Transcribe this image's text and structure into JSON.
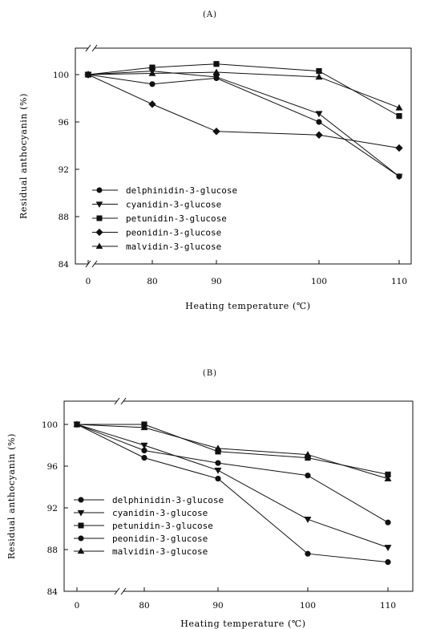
{
  "chart_data": [
    {
      "type": "line",
      "panel_label": "(A)",
      "x": [
        0,
        80,
        90,
        100,
        110
      ],
      "xlabel": "Heating temperature (℃)",
      "ylabel": "Residual anthocyanin (%)",
      "ylim": [
        84,
        102
      ],
      "yticks": [
        84,
        88,
        92,
        96,
        100
      ],
      "grid": false,
      "legend_position": "lower-left",
      "series": [
        {
          "name": "delphinidin-3-glucose",
          "marker": "circle",
          "values": [
            100,
            99.2,
            99.7,
            96.0,
            91.4
          ]
        },
        {
          "name": "cyanidin-3-glucose",
          "marker": "triangle-down",
          "values": [
            100,
            100.3,
            99.8,
            96.7,
            91.4
          ]
        },
        {
          "name": "petunidin-3-glucose",
          "marker": "square",
          "values": [
            100,
            100.6,
            100.9,
            100.3,
            96.5
          ]
        },
        {
          "name": "peonidin-3-glucose",
          "marker": "diamond",
          "values": [
            100,
            97.5,
            95.2,
            94.9,
            93.8
          ]
        },
        {
          "name": "malvidin-3-glucose",
          "marker": "triangle-up",
          "values": [
            100,
            100.1,
            100.2,
            99.8,
            97.2
          ]
        }
      ]
    },
    {
      "type": "line",
      "panel_label": "(B)",
      "x": [
        0,
        80,
        90,
        100,
        110
      ],
      "xlabel": "Heating temperature (℃)",
      "ylabel": "Residual anthocyanin (%)",
      "ylim": [
        84,
        102
      ],
      "yticks": [
        84,
        88,
        92,
        96,
        100
      ],
      "grid": false,
      "legend_position": "lower-left",
      "series": [
        {
          "name": "delphinidin-3-glucose",
          "marker": "circle",
          "values": [
            100,
            96.8,
            94.8,
            87.6,
            86.8
          ]
        },
        {
          "name": "cyanidin-3-glucose",
          "marker": "triangle-down",
          "values": [
            100,
            98.0,
            95.6,
            90.9,
            88.2
          ]
        },
        {
          "name": "petunidin-3-glucose",
          "marker": "square",
          "values": [
            100,
            100.0,
            97.4,
            96.8,
            95.2
          ]
        },
        {
          "name": "peonidin-3-glucose",
          "marker": "circle",
          "values": [
            100,
            97.5,
            96.3,
            95.1,
            90.6
          ]
        },
        {
          "name": "malvidin-3-glucose",
          "marker": "triangle-up",
          "values": [
            100,
            99.7,
            97.7,
            97.1,
            94.8
          ]
        }
      ]
    }
  ]
}
